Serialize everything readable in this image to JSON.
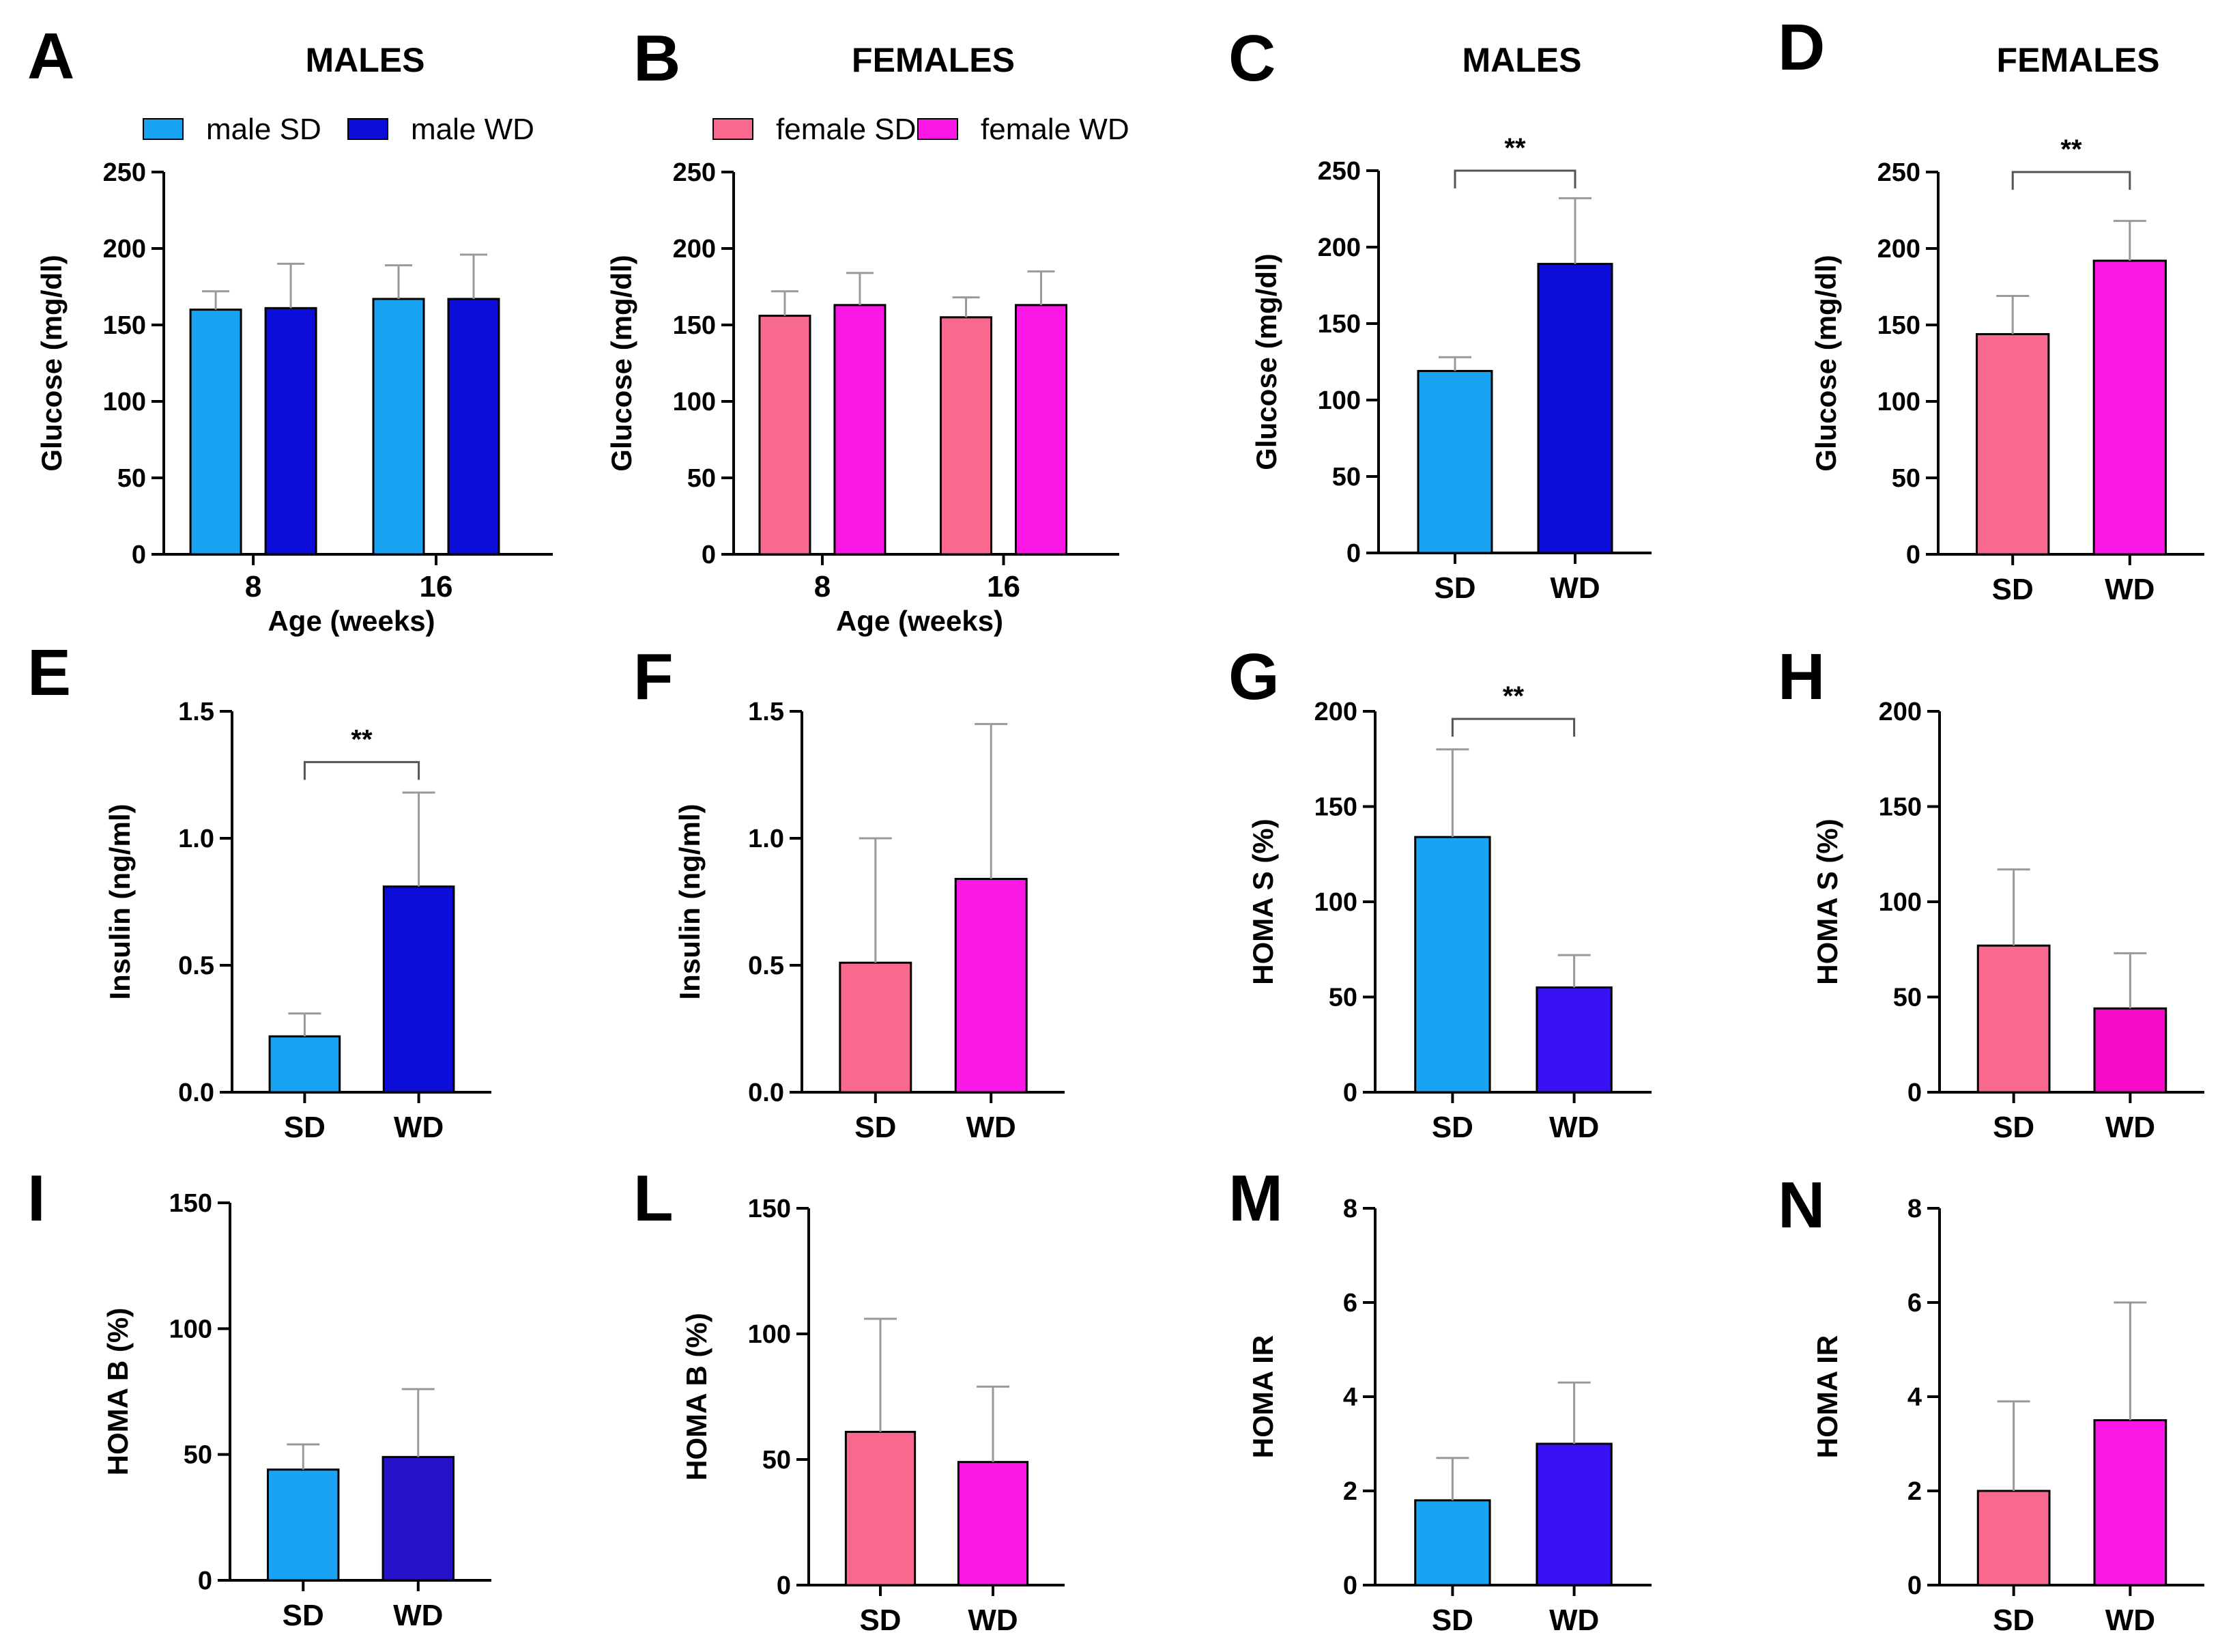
{
  "figure": {
    "chart_data": [
      {
        "id": "A",
        "letter": "A",
        "type": "bar",
        "title": "MALES",
        "xlabel": "Age (weeks)",
        "ylabel": "Glucose (mg/dl)",
        "ylim": [
          0,
          250
        ],
        "yticks": [
          "0",
          "50",
          "100",
          "150",
          "200",
          "250"
        ],
        "categories": [
          "8",
          "16"
        ],
        "legend": [
          {
            "name": "male SD",
            "color": "#1aa3f2"
          },
          {
            "name": "male WD",
            "color": "#0d0dd9"
          }
        ],
        "series": [
          {
            "name": "male SD",
            "color": "#1aa3f2",
            "values": [
              160,
              167
            ],
            "errors": [
              12,
              22
            ]
          },
          {
            "name": "male WD",
            "color": "#0d0dd9",
            "values": [
              161,
              167
            ],
            "errors": [
              29,
              29
            ]
          }
        ],
        "significance": []
      },
      {
        "id": "B",
        "letter": "B",
        "type": "bar",
        "title": "FEMALES",
        "xlabel": "Age (weeks)",
        "ylabel": "Glucose (mg/dl)",
        "ylim": [
          0,
          250
        ],
        "yticks": [
          "0",
          "50",
          "100",
          "150",
          "200",
          "250"
        ],
        "categories": [
          "8",
          "16"
        ],
        "legend": [
          {
            "name": "female SD",
            "color": "#f7698e"
          },
          {
            "name": "female WD",
            "color": "#fb17e6"
          }
        ],
        "series": [
          {
            "name": "female SD",
            "color": "#f7698e",
            "values": [
              156,
              155
            ],
            "errors": [
              16,
              13
            ]
          },
          {
            "name": "female WD",
            "color": "#fb17e6",
            "values": [
              163,
              163
            ],
            "errors": [
              21,
              22
            ]
          }
        ],
        "significance": []
      },
      {
        "id": "C",
        "letter": "C",
        "type": "bar",
        "title": "MALES",
        "xlabel": "",
        "ylabel": "Glucose (mg/dl)",
        "ylim": [
          0,
          250
        ],
        "yticks": [
          "0",
          "50",
          "100",
          "150",
          "200",
          "250"
        ],
        "categories": [
          "SD",
          "WD"
        ],
        "colors": [
          "#1aa3f2",
          "#0d0dd9"
        ],
        "values": [
          119,
          189
        ],
        "errors": [
          9,
          43
        ],
        "significance": [
          {
            "from": 0,
            "to": 1,
            "label": "**",
            "at": 250
          }
        ]
      },
      {
        "id": "D",
        "letter": "D",
        "type": "bar",
        "title": "FEMALES",
        "xlabel": "",
        "ylabel": "Glucose (mg/dl)",
        "ylim": [
          0,
          250
        ],
        "yticks": [
          "0",
          "50",
          "100",
          "150",
          "200",
          "250"
        ],
        "categories": [
          "SD",
          "WD"
        ],
        "colors": [
          "#f7698e",
          "#fb17e6"
        ],
        "values": [
          144,
          192
        ],
        "errors": [
          25,
          26
        ],
        "significance": [
          {
            "from": 0,
            "to": 1,
            "label": "**",
            "at": 250
          }
        ]
      },
      {
        "id": "E",
        "letter": "E",
        "type": "bar",
        "title": "",
        "xlabel": "",
        "ylabel": "Insulin (ng/ml)",
        "ylim": [
          0,
          1.5
        ],
        "yticks": [
          "0.0",
          "0.5",
          "1.0",
          "1.5"
        ],
        "categories": [
          "SD",
          "WD"
        ],
        "colors": [
          "#1aa3f2",
          "#0d0dd9"
        ],
        "values": [
          0.22,
          0.81
        ],
        "errors": [
          0.09,
          0.37
        ],
        "significance": [
          {
            "from": 0,
            "to": 1,
            "label": "**",
            "at": 1.3
          }
        ]
      },
      {
        "id": "F",
        "letter": "F",
        "type": "bar",
        "title": "",
        "xlabel": "",
        "ylabel": "Insulin (ng/ml)",
        "ylim": [
          0,
          1.5
        ],
        "yticks": [
          "0.0",
          "0.5",
          "1.0",
          "1.5"
        ],
        "categories": [
          "SD",
          "WD"
        ],
        "colors": [
          "#f7698e",
          "#fb17e6"
        ],
        "values": [
          0.51,
          0.84
        ],
        "errors": [
          0.49,
          0.61
        ],
        "significance": []
      },
      {
        "id": "G",
        "letter": "G",
        "type": "bar",
        "title": "",
        "xlabel": "",
        "ylabel": "HOMA S (%)",
        "ylim": [
          0,
          200
        ],
        "yticks": [
          "0",
          "50",
          "100",
          "150",
          "200"
        ],
        "categories": [
          "SD",
          "WD"
        ],
        "colors": [
          "#1aa3f2",
          "#3a10f5"
        ],
        "values": [
          134,
          55
        ],
        "errors": [
          46,
          17
        ],
        "significance": [
          {
            "from": 0,
            "to": 1,
            "label": "**",
            "at": 196
          }
        ]
      },
      {
        "id": "H",
        "letter": "H",
        "type": "bar",
        "title": "",
        "xlabel": "",
        "ylabel": "HOMA S (%)",
        "ylim": [
          0,
          200
        ],
        "yticks": [
          "0",
          "50",
          "100",
          "150",
          "200"
        ],
        "categories": [
          "SD",
          "WD"
        ],
        "colors": [
          "#f7698e",
          "#f70ac8"
        ],
        "values": [
          77,
          44
        ],
        "errors": [
          40,
          29
        ],
        "significance": []
      },
      {
        "id": "I",
        "letter": "I",
        "type": "bar",
        "title": "",
        "xlabel": "",
        "ylabel": "HOMA B (%)",
        "ylim": [
          0,
          150
        ],
        "yticks": [
          "0",
          "50",
          "100",
          "150"
        ],
        "categories": [
          "SD",
          "WD"
        ],
        "colors": [
          "#1aa3f2",
          "#2612c8"
        ],
        "values": [
          44,
          49
        ],
        "errors": [
          10,
          27
        ],
        "significance": []
      },
      {
        "id": "L",
        "letter": "L",
        "type": "bar",
        "title": "",
        "xlabel": "",
        "ylabel": "HOMA B (%)",
        "ylim": [
          0,
          150
        ],
        "yticks": [
          "0",
          "50",
          "100",
          "150"
        ],
        "categories": [
          "SD",
          "WD"
        ],
        "colors": [
          "#f7698e",
          "#fb17e6"
        ],
        "values": [
          61,
          49
        ],
        "errors": [
          45,
          30
        ],
        "significance": []
      },
      {
        "id": "M",
        "letter": "M",
        "type": "bar",
        "title": "",
        "xlabel": "",
        "ylabel": "HOMA IR",
        "ylim": [
          0,
          8
        ],
        "yticks": [
          "0",
          "2",
          "4",
          "6",
          "8"
        ],
        "categories": [
          "SD",
          "WD"
        ],
        "colors": [
          "#1aa3f2",
          "#3a10f5"
        ],
        "values": [
          1.8,
          3.0
        ],
        "errors": [
          0.9,
          1.3
        ],
        "significance": []
      },
      {
        "id": "N",
        "letter": "N",
        "type": "bar",
        "title": "",
        "xlabel": "",
        "ylabel": "HOMA IR",
        "ylim": [
          0,
          8
        ],
        "yticks": [
          "0",
          "2",
          "4",
          "6",
          "8"
        ],
        "categories": [
          "SD",
          "WD"
        ],
        "colors": [
          "#f7698e",
          "#fb17e6"
        ],
        "values": [
          2.0,
          3.5
        ],
        "errors": [
          1.9,
          2.5
        ],
        "significance": []
      }
    ]
  }
}
